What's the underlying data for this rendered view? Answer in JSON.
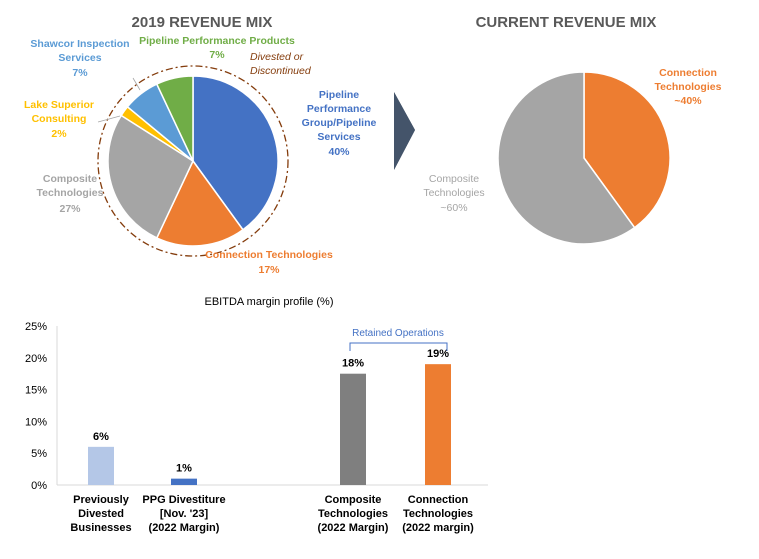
{
  "colors": {
    "blue": "#4472C4",
    "orange": "#ED7D31",
    "gray": "#A5A5A5",
    "yellow": "#FFC000",
    "lightblue": "#5B9BD5",
    "green": "#70AD47",
    "darkgray": "#7F7F7F",
    "paleblue": "#B4C7E7",
    "navy": "#44546A",
    "divested_line": "#843C0C"
  },
  "arrow_icon": "chevron-right-icon",
  "chart_data": [
    {
      "type": "pie",
      "title": "2019 REVENUE MIX",
      "slices": [
        {
          "label_lines": [
            "Pipeline",
            "Performance",
            "Group/Pipeline",
            "Services"
          ],
          "value_label": "40%",
          "value": 40,
          "color": "#4472C4"
        },
        {
          "label_lines": [
            "Connection Technologies"
          ],
          "value_label": "17%",
          "value": 17,
          "color": "#ED7D31"
        },
        {
          "label_lines": [
            "Composite",
            "Technologies"
          ],
          "value_label": "27%",
          "value": 27,
          "color": "#A5A5A5"
        },
        {
          "label_lines": [
            "Lake Superior",
            "Consulting"
          ],
          "value_label": "2%",
          "value": 2,
          "color": "#FFC000"
        },
        {
          "label_lines": [
            "Shawcor Inspection",
            "Services"
          ],
          "value_label": "7%",
          "value": 7,
          "color": "#5B9BD5"
        },
        {
          "label_lines": [
            "Pipeline Performance Products"
          ],
          "value_label": "7%",
          "value": 7,
          "color": "#70AD47"
        }
      ],
      "annotation_lines": [
        "Divested or",
        "Discontinued"
      ]
    },
    {
      "type": "pie",
      "title": "CURRENT REVENUE MIX",
      "slices": [
        {
          "label_lines": [
            "Connection",
            "Technologies"
          ],
          "value_label": "~40%",
          "value": 40,
          "color": "#ED7D31"
        },
        {
          "label_lines": [
            "Composite",
            "Technologies"
          ],
          "value_label": "~60%",
          "value": 60,
          "color": "#A5A5A5"
        }
      ]
    },
    {
      "type": "bar",
      "title": "EBITDA margin profile (%)",
      "categories": [
        [
          "Previously",
          "Divested",
          "Businesses"
        ],
        [
          "PPG Divestiture",
          "[Nov. '23]",
          "(2022 Margin)"
        ],
        [
          "Composite",
          "Technologies",
          "(2022 Margin)"
        ],
        [
          "Connection",
          "Technologies",
          "(2022 margin)"
        ]
      ],
      "values": [
        6,
        1,
        17.5,
        19
      ],
      "data_labels": [
        "6%",
        "1%",
        "18%",
        "19%"
      ],
      "colors": [
        "#B4C7E7",
        "#4472C4",
        "#7F7F7F",
        "#ED7D31"
      ],
      "ylim": [
        0,
        25
      ],
      "yticks": [
        "0%",
        "5%",
        "10%",
        "15%",
        "20%",
        "25%"
      ],
      "gridlines": false,
      "bracket_label": "Retained Operations"
    }
  ]
}
